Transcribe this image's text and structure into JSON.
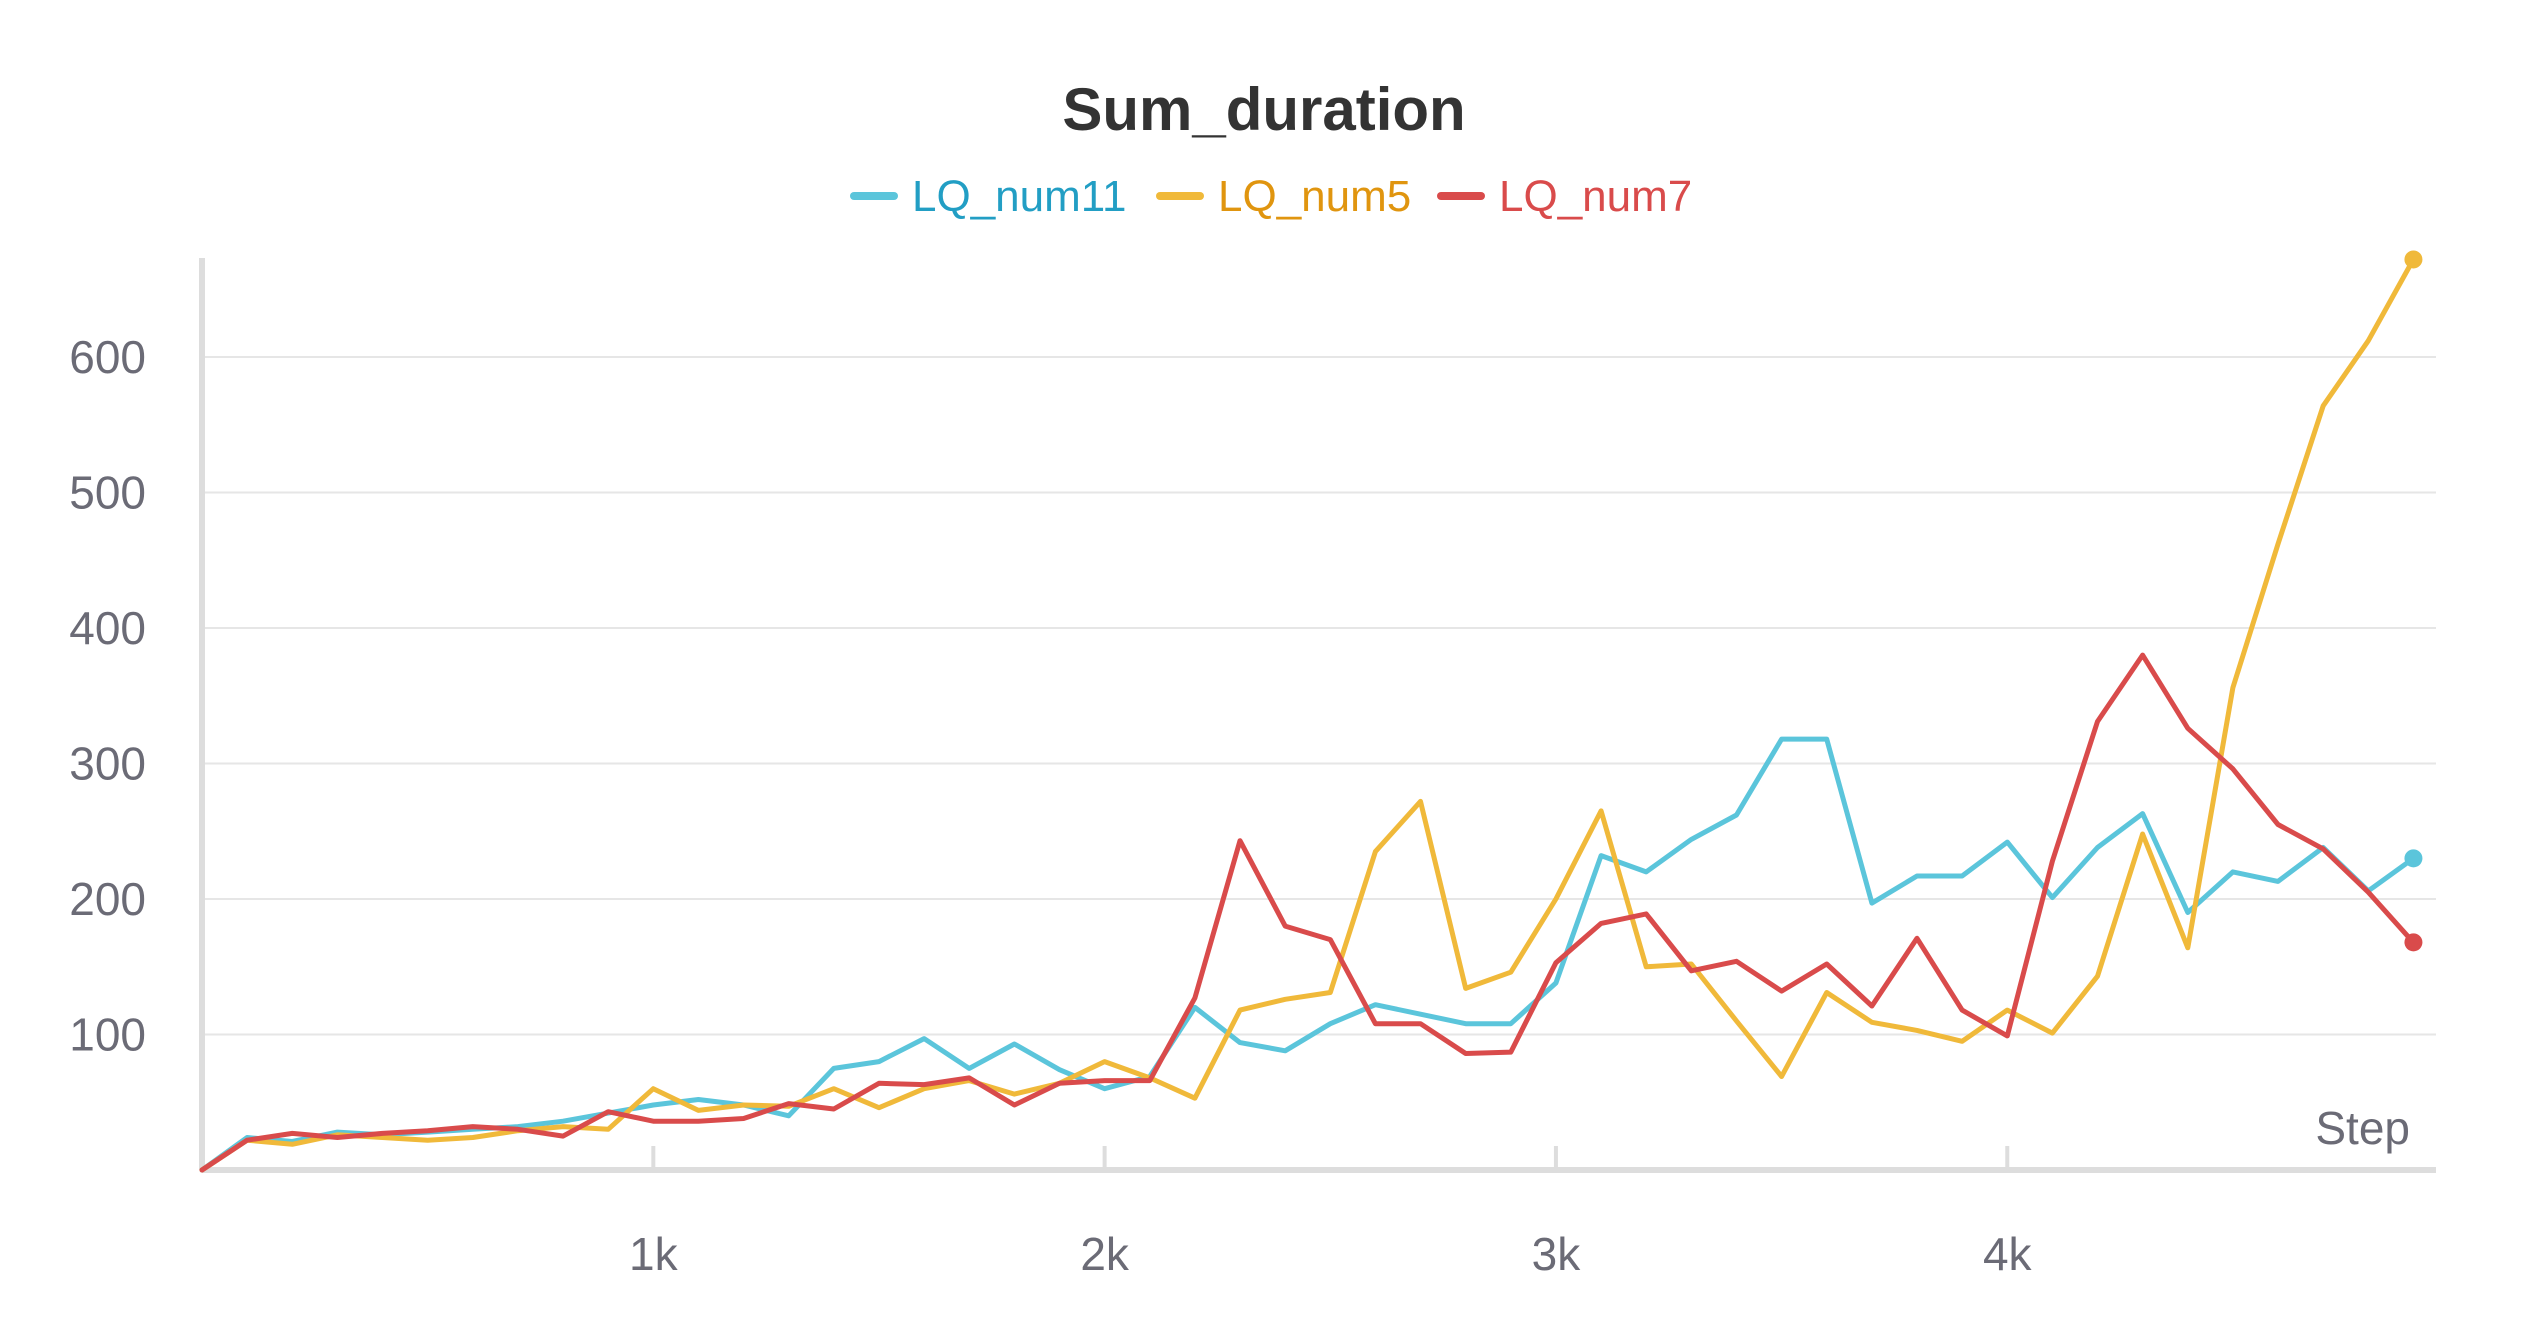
{
  "chart_data": {
    "type": "line",
    "title": "Sum_duration",
    "xlabel": "Step",
    "ylabel": "",
    "xlim": [
      0,
      4950
    ],
    "ylim": [
      0,
      600
    ],
    "x_ticks": [
      {
        "value": 1000,
        "label": "1k"
      },
      {
        "value": 2000,
        "label": "2k"
      },
      {
        "value": 3000,
        "label": "3k"
      },
      {
        "value": 4000,
        "label": "4k"
      }
    ],
    "y_ticks": [
      {
        "value": 100,
        "label": "100"
      },
      {
        "value": 200,
        "label": "200"
      },
      {
        "value": 300,
        "label": "300"
      },
      {
        "value": 400,
        "label": "400"
      },
      {
        "value": 500,
        "label": "500"
      },
      {
        "value": 600,
        "label": "600"
      }
    ],
    "grid": true,
    "legend_position": "top-center",
    "x": [
      0,
      100,
      200,
      300,
      400,
      500,
      600,
      700,
      800,
      900,
      1000,
      1100,
      1200,
      1300,
      1400,
      1500,
      1600,
      1700,
      1800,
      1900,
      2000,
      2100,
      2200,
      2300,
      2400,
      2500,
      2600,
      2700,
      2800,
      2900,
      3000,
      3100,
      3200,
      3300,
      3400,
      3500,
      3600,
      3700,
      3800,
      3900,
      4000,
      4100,
      4200,
      4300,
      4400,
      4500,
      4600,
      4700,
      4800,
      4900
    ],
    "series": [
      {
        "name": "LQ_num11",
        "color": "#5bc5db",
        "legend_color": "#229ec4",
        "values": [
          0,
          24,
          21,
          28,
          26,
          28,
          30,
          32,
          36,
          42,
          48,
          52,
          48,
          40,
          75,
          80,
          97,
          75,
          93,
          74,
          60,
          69,
          120,
          94,
          88,
          108,
          122,
          115,
          108,
          108,
          138,
          232,
          220,
          244,
          262,
          318,
          318,
          197,
          217,
          217,
          242,
          201,
          238,
          263,
          190,
          220,
          213,
          238,
          206,
          230
        ]
      },
      {
        "name": "LQ_num5",
        "color": "#f0b93a",
        "legend_color": "#e0950f",
        "values": [
          0,
          22,
          19,
          26,
          24,
          22,
          24,
          29,
          32,
          30,
          60,
          44,
          48,
          47,
          60,
          46,
          60,
          66,
          56,
          64,
          80,
          68,
          53,
          118,
          126,
          131,
          235,
          272,
          134,
          146,
          200,
          265,
          150,
          152,
          110,
          69,
          131,
          109,
          103,
          95,
          118,
          101,
          143,
          248,
          164,
          356,
          462,
          564,
          612,
          672
        ]
      },
      {
        "name": "LQ_num7",
        "color": "#d94b4b",
        "legend_color": "#d94b4b",
        "values": [
          0,
          22,
          27,
          24,
          27,
          29,
          32,
          30,
          25,
          43,
          36,
          36,
          38,
          49,
          45,
          64,
          63,
          68,
          48,
          64,
          66,
          66,
          127,
          243,
          180,
          170,
          108,
          108,
          86,
          87,
          153,
          182,
          189,
          147,
          154,
          132,
          152,
          121,
          171,
          118,
          99,
          228,
          331,
          380,
          326,
          296,
          255,
          237,
          205,
          168
        ]
      }
    ]
  }
}
